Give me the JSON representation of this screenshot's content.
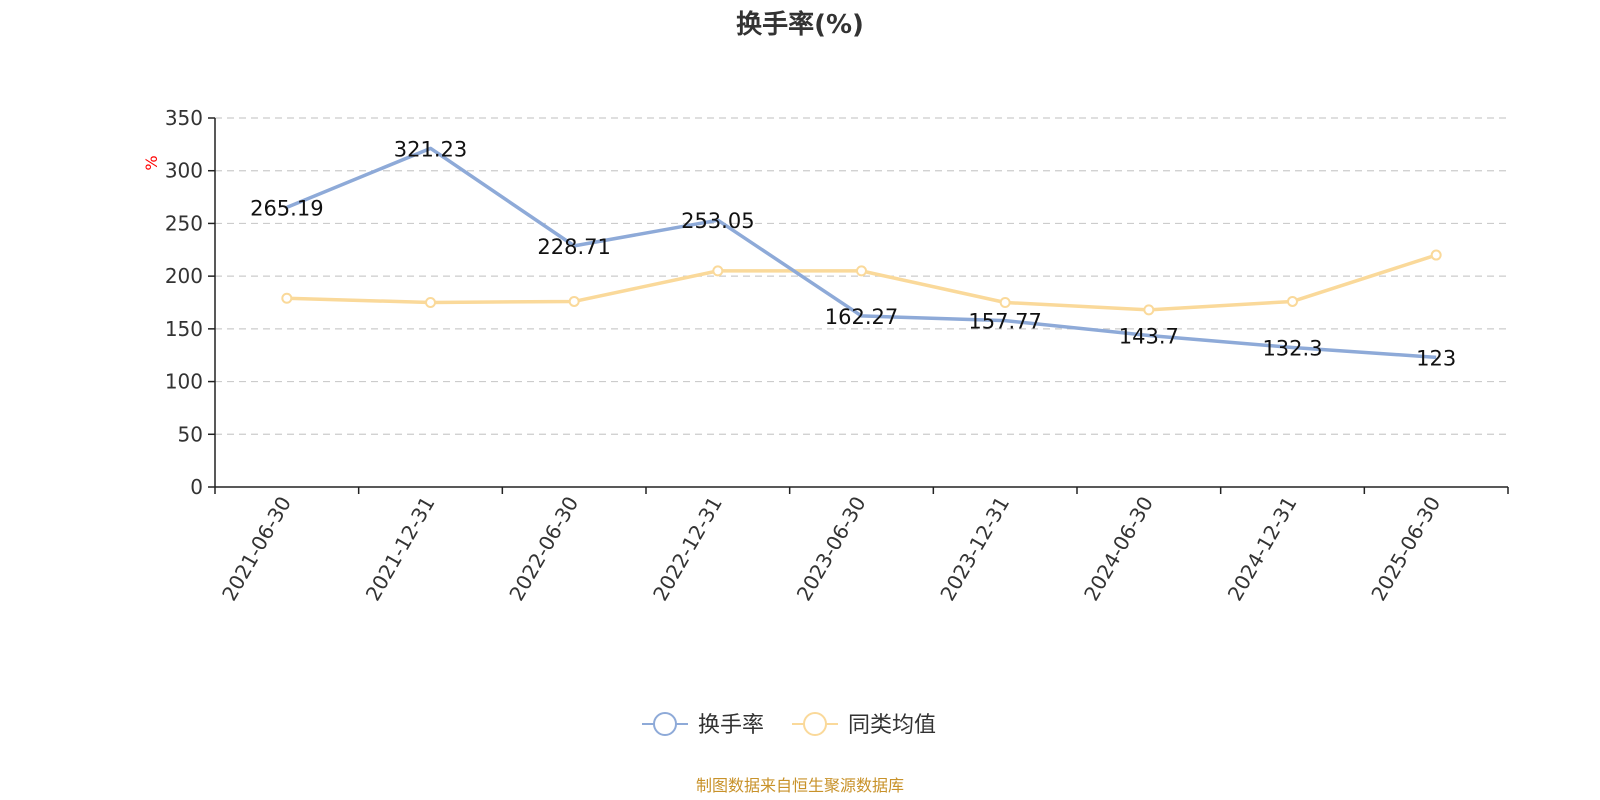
{
  "chart_data": {
    "type": "line",
    "title": "换手率(%)",
    "ylabel": "%",
    "xlabel": "",
    "categories": [
      "2021-06-30",
      "2021-12-31",
      "2022-06-30",
      "2022-12-31",
      "2023-06-30",
      "2023-12-31",
      "2024-06-30",
      "2024-12-31",
      "2025-06-30"
    ],
    "ylim": [
      0,
      350
    ],
    "yticks": [
      0,
      50,
      100,
      150,
      200,
      250,
      300,
      350
    ],
    "grid": true,
    "legend_position": "bottom-center",
    "series": [
      {
        "name": "换手率",
        "color": "#8eaad8",
        "values": [
          265.19,
          321.23,
          228.71,
          253.05,
          162.27,
          157.77,
          143.7,
          132.3,
          123
        ],
        "value_labels": [
          "265.19",
          "321.23",
          "228.71",
          "253.05",
          "162.27",
          "157.77",
          "143.7",
          "132.3",
          "123"
        ],
        "show_labels": true,
        "show_markers": false
      },
      {
        "name": "同类均值",
        "color": "#fad99a",
        "values": [
          179,
          175,
          176,
          205,
          205,
          175,
          168,
          176,
          220
        ],
        "show_labels": false,
        "show_markers": true
      }
    ]
  },
  "source": "制图数据来自恒生聚源数据库"
}
